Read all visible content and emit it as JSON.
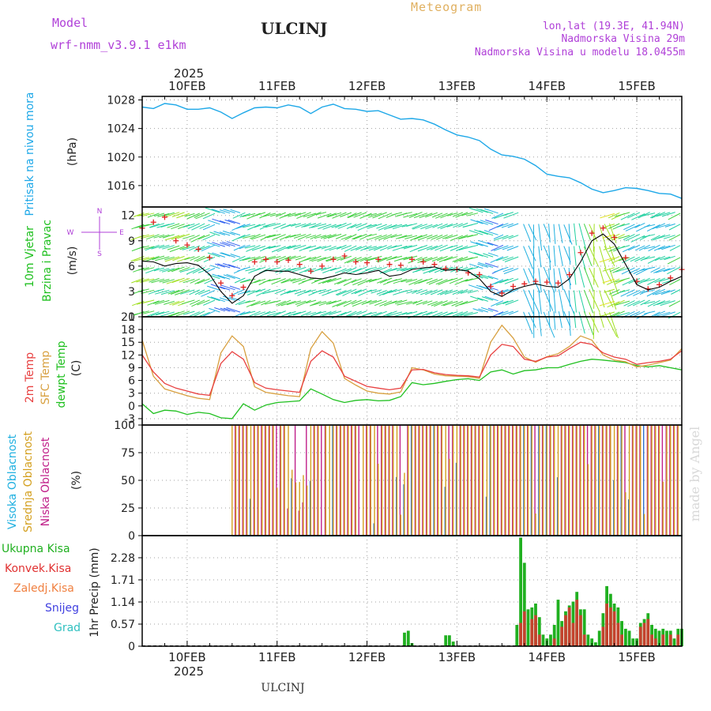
{
  "header": {
    "model_label": "Model",
    "model_name": "wrf-nmm_v3.9.1 e1km",
    "title": "ULCINJ",
    "meteogram_label": "Meteogram",
    "info_lines": [
      "lon,lat (19.3E, 41.94N)",
      "Nadmorska Visina 29m",
      "Nadmorska Visina u modelu 18.0455m"
    ]
  },
  "time_axis": {
    "year": "2025",
    "start_hour": 0,
    "end_hour": 144,
    "day_labels": [
      {
        "label": "10FEB",
        "hour": 12
      },
      {
        "label": "11FEB",
        "hour": 36
      },
      {
        "label": "12FEB",
        "hour": 60
      },
      {
        "label": "13FEB",
        "hour": 84
      },
      {
        "label": "14FEB",
        "hour": 108
      },
      {
        "label": "15FEB",
        "hour": 132
      }
    ]
  },
  "footer": {
    "station": "ULCINJ",
    "credit": "made by Angel"
  },
  "colors": {
    "pressure": "#1ea8e8",
    "wind_speed": "#000000",
    "gust": "#e02020",
    "t2m": "#e84040",
    "sfc": "#d8a040",
    "dewpoint": "#20c020",
    "cloud_high": "#20b0e0",
    "cloud_mid": "#d4a020",
    "cloud_low": "#c0208a",
    "precip_total": "#20b020",
    "precip_conv": "#e03030"
  },
  "chart_data": [
    {
      "type": "line",
      "panel": "pressure",
      "ylabel": [
        "Pritisak na nivou mora",
        "(hPa)"
      ],
      "yticks": [
        "1016",
        "1020",
        "1024",
        "1028"
      ],
      "ylim": [
        1013,
        1028.5
      ],
      "x_unit": "hours from 2025-02-10 00 UTC",
      "series": [
        {
          "x": [
            0,
            3,
            6,
            9,
            12,
            15,
            18,
            21,
            24,
            27,
            30,
            33,
            36,
            39,
            42,
            45,
            48,
            51,
            54,
            57,
            60,
            63,
            66,
            69,
            72,
            75,
            78,
            81,
            84,
            87,
            90,
            93,
            96,
            99,
            102,
            105,
            108,
            111,
            114,
            117,
            120,
            123,
            126,
            129,
            132,
            135,
            138,
            141,
            144
          ],
          "values": [
            1027.0,
            1026.8,
            1027.5,
            1027.3,
            1026.7,
            1026.7,
            1026.9,
            1026.3,
            1025.4,
            1026.2,
            1026.9,
            1027.0,
            1026.9,
            1027.3,
            1027.0,
            1026.1,
            1027.0,
            1027.4,
            1026.8,
            1026.7,
            1026.4,
            1026.5,
            1025.9,
            1025.3,
            1025.4,
            1025.2,
            1024.6,
            1023.8,
            1023.1,
            1022.8,
            1022.3,
            1021.1,
            1020.3,
            1020.1,
            1019.7,
            1018.8,
            1017.6,
            1017.3,
            1017.1,
            1016.4,
            1015.5,
            1015.0,
            1015.3,
            1015.7,
            1015.6,
            1015.3,
            1014.9,
            1014.8,
            1014.2
          ]
        }
      ]
    },
    {
      "type": "line",
      "panel": "wind",
      "ylabel": [
        "10m Vjetar",
        "Brzina i Pravac",
        "(m/s)"
      ],
      "compass_legend": {
        "north": "N",
        "west": "W",
        "east": "E",
        "south": "S"
      },
      "yticks": [
        "0",
        "3",
        "6",
        "9",
        "12"
      ],
      "ylim": [
        0,
        13
      ],
      "series": [
        {
          "name": "speed",
          "x": [
            0,
            3,
            6,
            9,
            12,
            15,
            18,
            21,
            24,
            27,
            30,
            33,
            36,
            39,
            42,
            45,
            48,
            51,
            54,
            57,
            60,
            63,
            66,
            69,
            72,
            75,
            78,
            81,
            84,
            87,
            90,
            93,
            96,
            99,
            102,
            105,
            108,
            111,
            114,
            117,
            120,
            123,
            126,
            129,
            132,
            135,
            138,
            141,
            144
          ],
          "values": [
            6.6,
            6.5,
            6.0,
            6.3,
            6.4,
            6.1,
            5.0,
            3.0,
            1.6,
            2.5,
            4.8,
            5.5,
            5.4,
            5.4,
            5.0,
            4.6,
            4.5,
            4.8,
            5.2,
            5.0,
            5.2,
            5.5,
            4.8,
            5.0,
            5.6,
            5.8,
            5.9,
            5.5,
            5.6,
            5.4,
            4.5,
            3.0,
            2.4,
            3.2,
            3.6,
            3.9,
            3.6,
            3.5,
            4.5,
            6.5,
            9.0,
            9.8,
            8.6,
            6.2,
            3.8,
            3.2,
            3.5,
            4.2,
            4.8
          ]
        },
        {
          "name": "gust",
          "x": [
            0,
            3,
            6,
            9,
            12,
            15,
            18,
            21,
            24,
            27,
            30,
            33,
            36,
            39,
            42,
            45,
            48,
            51,
            54,
            57,
            60,
            63,
            66,
            69,
            72,
            75,
            78,
            81,
            84,
            87,
            90,
            93,
            96,
            99,
            102,
            105,
            108,
            111,
            114,
            117,
            120,
            123,
            126,
            129,
            132,
            135,
            138,
            141,
            144
          ],
          "values": [
            10.5,
            11.2,
            11.8,
            9.0,
            8.5,
            8.0,
            7.0,
            4.0,
            2.5,
            3.5,
            6.5,
            6.8,
            6.5,
            6.7,
            6.2,
            5.4,
            6.0,
            6.8,
            7.2,
            6.5,
            6.4,
            6.8,
            6.2,
            6.1,
            6.8,
            6.5,
            6.2,
            5.7,
            5.6,
            5.2,
            5.0,
            3.6,
            2.8,
            3.6,
            3.9,
            4.2,
            4.1,
            4.0,
            5.0,
            7.6,
            9.9,
            10.5,
            9.4,
            7.0,
            4.2,
            3.3,
            3.8,
            4.6,
            5.6
          ]
        }
      ]
    },
    {
      "type": "line",
      "panel": "temperature",
      "ylabel": [
        "2m Temp",
        "SFC Temp",
        "dewpt Temp",
        "(C)"
      ],
      "yticks": [
        "-3",
        "0",
        "3",
        "6",
        "9",
        "12",
        "15",
        "18",
        "21"
      ],
      "ylim": [
        -4.5,
        21
      ],
      "series": [
        {
          "name": "2m Temp",
          "x": [
            0,
            3,
            6,
            9,
            12,
            15,
            18,
            21,
            24,
            27,
            30,
            33,
            36,
            39,
            42,
            45,
            48,
            51,
            54,
            57,
            60,
            63,
            66,
            69,
            72,
            75,
            78,
            81,
            84,
            87,
            90,
            93,
            96,
            99,
            102,
            105,
            108,
            111,
            114,
            117,
            120,
            123,
            126,
            129,
            132,
            135,
            138,
            141,
            144
          ],
          "values": [
            12.0,
            8.0,
            5.3,
            4.2,
            3.5,
            2.8,
            2.5,
            10.0,
            12.8,
            11.0,
            5.5,
            4.2,
            3.8,
            3.5,
            3.2,
            10.5,
            13.0,
            11.5,
            7.0,
            5.8,
            4.6,
            4.2,
            3.8,
            4.2,
            8.5,
            8.6,
            7.8,
            7.4,
            7.2,
            7.1,
            6.8,
            12.0,
            14.5,
            14.0,
            11.0,
            10.5,
            11.5,
            11.8,
            13.5,
            15.0,
            14.5,
            12.5,
            11.5,
            11.0,
            9.8,
            10.2,
            10.5,
            11.0,
            13.0
          ]
        },
        {
          "name": "SFC Temp",
          "x": [
            0,
            3,
            6,
            9,
            12,
            15,
            18,
            21,
            24,
            27,
            30,
            33,
            36,
            39,
            42,
            45,
            48,
            51,
            54,
            57,
            60,
            63,
            66,
            69,
            72,
            75,
            78,
            81,
            84,
            87,
            90,
            93,
            96,
            99,
            102,
            105,
            108,
            111,
            114,
            117,
            120,
            123,
            126,
            129,
            132,
            135,
            138,
            141,
            144
          ],
          "values": [
            15.5,
            7.0,
            4.0,
            3.2,
            2.4,
            1.8,
            1.5,
            12.5,
            16.5,
            14.0,
            4.5,
            3.2,
            2.8,
            2.4,
            2.2,
            13.5,
            17.5,
            14.8,
            6.5,
            4.9,
            3.5,
            3.0,
            2.8,
            3.3,
            9.0,
            8.5,
            7.5,
            7.1,
            7.0,
            6.9,
            6.5,
            15.0,
            19.0,
            16.0,
            11.5,
            10.3,
            11.6,
            12.3,
            14.0,
            16.5,
            15.5,
            12.0,
            10.8,
            10.4,
            9.2,
            9.6,
            10.2,
            10.8,
            13.5
          ]
        },
        {
          "name": "dewpt Temp",
          "x": [
            0,
            3,
            6,
            9,
            12,
            15,
            18,
            21,
            24,
            27,
            30,
            33,
            36,
            39,
            42,
            45,
            48,
            51,
            54,
            57,
            60,
            63,
            66,
            69,
            72,
            75,
            78,
            81,
            84,
            87,
            90,
            93,
            96,
            99,
            102,
            105,
            108,
            111,
            114,
            117,
            120,
            123,
            126,
            129,
            132,
            135,
            138,
            141,
            144
          ],
          "values": [
            0.5,
            -1.8,
            -1.0,
            -1.2,
            -2.0,
            -1.5,
            -1.8,
            -2.8,
            -3.0,
            0.5,
            -1.0,
            0.2,
            0.8,
            1.0,
            1.2,
            4.0,
            2.8,
            1.5,
            0.8,
            1.3,
            1.5,
            1.2,
            1.3,
            2.2,
            5.5,
            5.0,
            5.3,
            5.8,
            6.2,
            6.4,
            6.0,
            8.0,
            8.5,
            7.5,
            8.3,
            8.5,
            9.0,
            9.0,
            9.8,
            10.5,
            11.0,
            10.8,
            10.5,
            10.2,
            9.5,
            9.2,
            9.5,
            9.0,
            8.5
          ]
        }
      ]
    },
    {
      "type": "bar",
      "panel": "clouds",
      "ylabel": [
        "Visoka Oblacnost",
        "Srednja Oblacnost",
        "Niska Oblacnost",
        "(%)"
      ],
      "yticks": [
        "0",
        "25",
        "50",
        "75",
        "100"
      ],
      "ylim": [
        0,
        100
      ],
      "note": "Cloud fraction flat at 0% until about 11FEB 00 UTC, then mostly 100% bars of mid and low cloud; high cloud very low.",
      "series": [
        {
          "name": "Srednja Oblacnost",
          "x_start": 24,
          "x_end": 144,
          "typical_value": 100
        },
        {
          "name": "Niska Oblacnost",
          "x_start": 24,
          "x_end": 144,
          "typical_value": 100
        },
        {
          "name": "Visoka Oblacnost",
          "x_start": 0,
          "x_end": 144,
          "typical_value": 0
        }
      ]
    },
    {
      "type": "bar",
      "panel": "precipitation",
      "ylabel": [
        "1hr Precip (mm)"
      ],
      "legend": [
        "Ukupna Kisa",
        "Konvek.Kisa",
        "Zaledj.Kisa",
        "Snijeg",
        "Grad"
      ],
      "yticks": [
        "0",
        "0.57",
        "1.14",
        "1.71",
        "2.28"
      ],
      "ylim": [
        0,
        2.85
      ],
      "series": [
        {
          "name": "Ukupna Kisa",
          "x": [
            70,
            71,
            72,
            81,
            82,
            83,
            100,
            101,
            102,
            103,
            104,
            105,
            106,
            107,
            108,
            109,
            110,
            111,
            112,
            113,
            114,
            115,
            116,
            117,
            118,
            119,
            120,
            121,
            122,
            123,
            124,
            125,
            126,
            127,
            128,
            129,
            130,
            131,
            132,
            133,
            134,
            135,
            136,
            137,
            138,
            139,
            140,
            141,
            142,
            143,
            144
          ],
          "values": [
            0.35,
            0.4,
            0.08,
            0.28,
            0.28,
            0.12,
            0.55,
            2.8,
            2.15,
            0.95,
            1.0,
            1.1,
            0.75,
            0.3,
            0.2,
            0.3,
            0.55,
            1.2,
            0.65,
            0.9,
            1.05,
            1.15,
            1.4,
            0.95,
            0.95,
            0.3,
            0.2,
            0.1,
            0.4,
            0.85,
            1.55,
            1.35,
            1.1,
            1.0,
            0.65,
            0.45,
            0.4,
            0.2,
            0.2,
            0.6,
            0.7,
            0.85,
            0.55,
            0.45,
            0.4,
            0.45,
            0.4,
            0.4,
            0.2,
            0.45,
            0.45
          ]
        },
        {
          "name": "Konvek.Kisa",
          "x": [
            101,
            102,
            104,
            105,
            106,
            110,
            112,
            113,
            114,
            115,
            116,
            117,
            118,
            123,
            124,
            125,
            126,
            127,
            128,
            133,
            134,
            135,
            136,
            137,
            139,
            141,
            143
          ],
          "values": [
            0.6,
            0.9,
            0.7,
            0.8,
            0.3,
            0.2,
            0.5,
            0.8,
            1.0,
            0.6,
            1.2,
            0.8,
            0.3,
            0.5,
            1.1,
            1.0,
            0.9,
            0.6,
            0.3,
            0.5,
            0.6,
            0.7,
            0.3,
            0.2,
            0.3,
            0.3,
            0.3
          ]
        }
      ]
    }
  ]
}
